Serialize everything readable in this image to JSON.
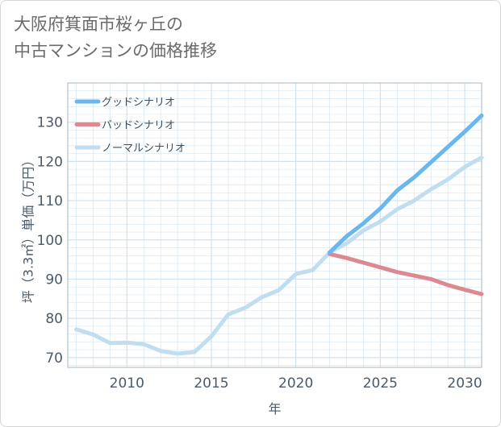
{
  "title_lines": [
    "大阪府箕面市桜ヶ丘の",
    "中古マンションの価格推移"
  ],
  "colors": {
    "good": "#69b7ec",
    "bad": "#dd8991",
    "normal": "#c0def0",
    "grid": "#cfe2ef",
    "axis_text": "#4a5a6a"
  },
  "chart_data": {
    "type": "line",
    "xlabel": "年",
    "ylabel": "坪（3.3㎡）単価（万円）",
    "xlim": [
      2006.5,
      2031
    ],
    "ylim": [
      67.5,
      140
    ],
    "x_ticks": [
      2010,
      2015,
      2020,
      2025,
      2030
    ],
    "y_ticks": [
      70,
      80,
      90,
      100,
      110,
      120,
      130
    ],
    "legend_position": "top-left",
    "grid": true,
    "series": [
      {
        "name": "グッドシナリオ",
        "key": "good",
        "x": [
          2022,
          2023,
          2024,
          2025,
          2026,
          2027,
          2028,
          2029,
          2030,
          2031
        ],
        "y": [
          96.8,
          100.9,
          104.2,
          108.0,
          112.6,
          115.9,
          119.8,
          123.7,
          127.6,
          131.7
        ]
      },
      {
        "name": "バッドシナリオ",
        "key": "bad",
        "x": [
          2022,
          2023,
          2024,
          2025,
          2026,
          2027,
          2028,
          2029,
          2030,
          2031
        ],
        "y": [
          96.4,
          95.4,
          94.2,
          93.0,
          91.8,
          90.9,
          90.0,
          88.5,
          87.3,
          86.2
        ]
      },
      {
        "name": "ノーマルシナリオ",
        "key": "normal",
        "x": [
          2007,
          2008,
          2009,
          2010,
          2011,
          2012,
          2013,
          2014,
          2015,
          2016,
          2017,
          2018,
          2019,
          2020,
          2021,
          2022,
          2023,
          2024,
          2025,
          2026,
          2027,
          2028,
          2029,
          2030,
          2031
        ],
        "y": [
          77.2,
          75.9,
          73.7,
          73.8,
          73.4,
          71.7,
          71.0,
          71.4,
          75.4,
          81.0,
          82.7,
          85.4,
          87.2,
          91.3,
          92.3,
          96.8,
          99.1,
          102.4,
          104.7,
          107.8,
          110.0,
          112.9,
          115.4,
          118.6,
          121.0
        ]
      }
    ]
  }
}
